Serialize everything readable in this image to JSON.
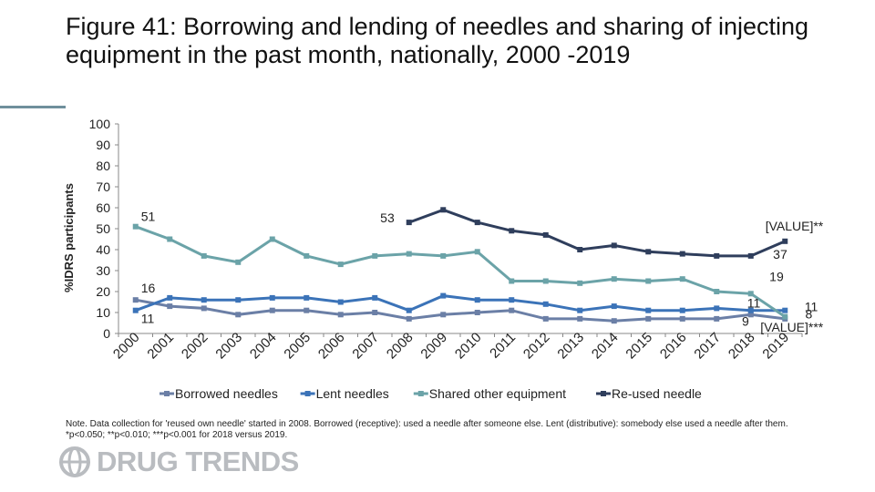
{
  "slide": {
    "title": "Figure 41: Borrowing and lending of needles and sharing of injecting equipment in the past month, nationally, 2000 -2019",
    "note": "Note. Data collection for 'reused own needle' started in 2008. Borrowed (receptive): used a needle after someone else. Lent (distributive): somebody else used a needle after them. *p<0.050; **p<0.010; ***p<0.001 for 2018 versus 2019.",
    "brand": "DRUG TRENDS",
    "brand_icon": "globe-logo-icon"
  },
  "chart_data": {
    "type": "line",
    "ylabel": "%IDRS participants",
    "xlabel": "",
    "ylim": [
      0,
      100
    ],
    "yticks": [
      0,
      10,
      20,
      30,
      40,
      50,
      60,
      70,
      80,
      90,
      100
    ],
    "categories": [
      "2000",
      "2001",
      "2002",
      "2003",
      "2004",
      "2005",
      "2006",
      "2007",
      "2008",
      "2009",
      "2010",
      "2011",
      "2012",
      "2013",
      "2014",
      "2015",
      "2016",
      "2017",
      "2018",
      "2019"
    ],
    "legend_position": "bottom",
    "grid": false,
    "series": [
      {
        "name": "Borrowed needles",
        "color": "#6b7fa6",
        "values": [
          16,
          13,
          12,
          9,
          11,
          11,
          9,
          10,
          7,
          9,
          10,
          11,
          7,
          7,
          6,
          7,
          7,
          7,
          9,
          7
        ]
      },
      {
        "name": "Lent needles",
        "color": "#3b73b8",
        "values": [
          11,
          17,
          16,
          16,
          17,
          17,
          15,
          17,
          11,
          18,
          16,
          16,
          14,
          11,
          13,
          11,
          11,
          12,
          11,
          11
        ]
      },
      {
        "name": "Shared other equipment",
        "color": "#6ba3a8",
        "values": [
          51,
          45,
          37,
          34,
          45,
          37,
          33,
          37,
          38,
          37,
          39,
          25,
          25,
          24,
          26,
          25,
          26,
          20,
          19,
          8
        ]
      },
      {
        "name": "Re-used needle",
        "color": "#2f3e5c",
        "values": [
          null,
          null,
          null,
          null,
          null,
          null,
          null,
          null,
          53,
          59,
          53,
          49,
          47,
          40,
          42,
          39,
          38,
          37,
          37,
          44
        ]
      }
    ],
    "data_labels": [
      {
        "series": 2,
        "index": 0,
        "text": "51"
      },
      {
        "series": 0,
        "index": 0,
        "text": "16"
      },
      {
        "series": 1,
        "index": 0,
        "text": "11"
      },
      {
        "series": 3,
        "index": 8,
        "text": "53"
      },
      {
        "series": 3,
        "index": 19,
        "text": "[VALUE]**"
      },
      {
        "series": 3,
        "index": 18,
        "text": "37"
      },
      {
        "series": 2,
        "index": 18,
        "text": "19"
      },
      {
        "series": 1,
        "index": 19,
        "text": "11"
      },
      {
        "series": 1,
        "index": 18,
        "text": "11"
      },
      {
        "series": 2,
        "index": 19,
        "text": "8"
      },
      {
        "series": 0,
        "index": 18,
        "text": "9"
      },
      {
        "series": 0,
        "index": 19,
        "text": "[VALUE]***"
      }
    ]
  }
}
